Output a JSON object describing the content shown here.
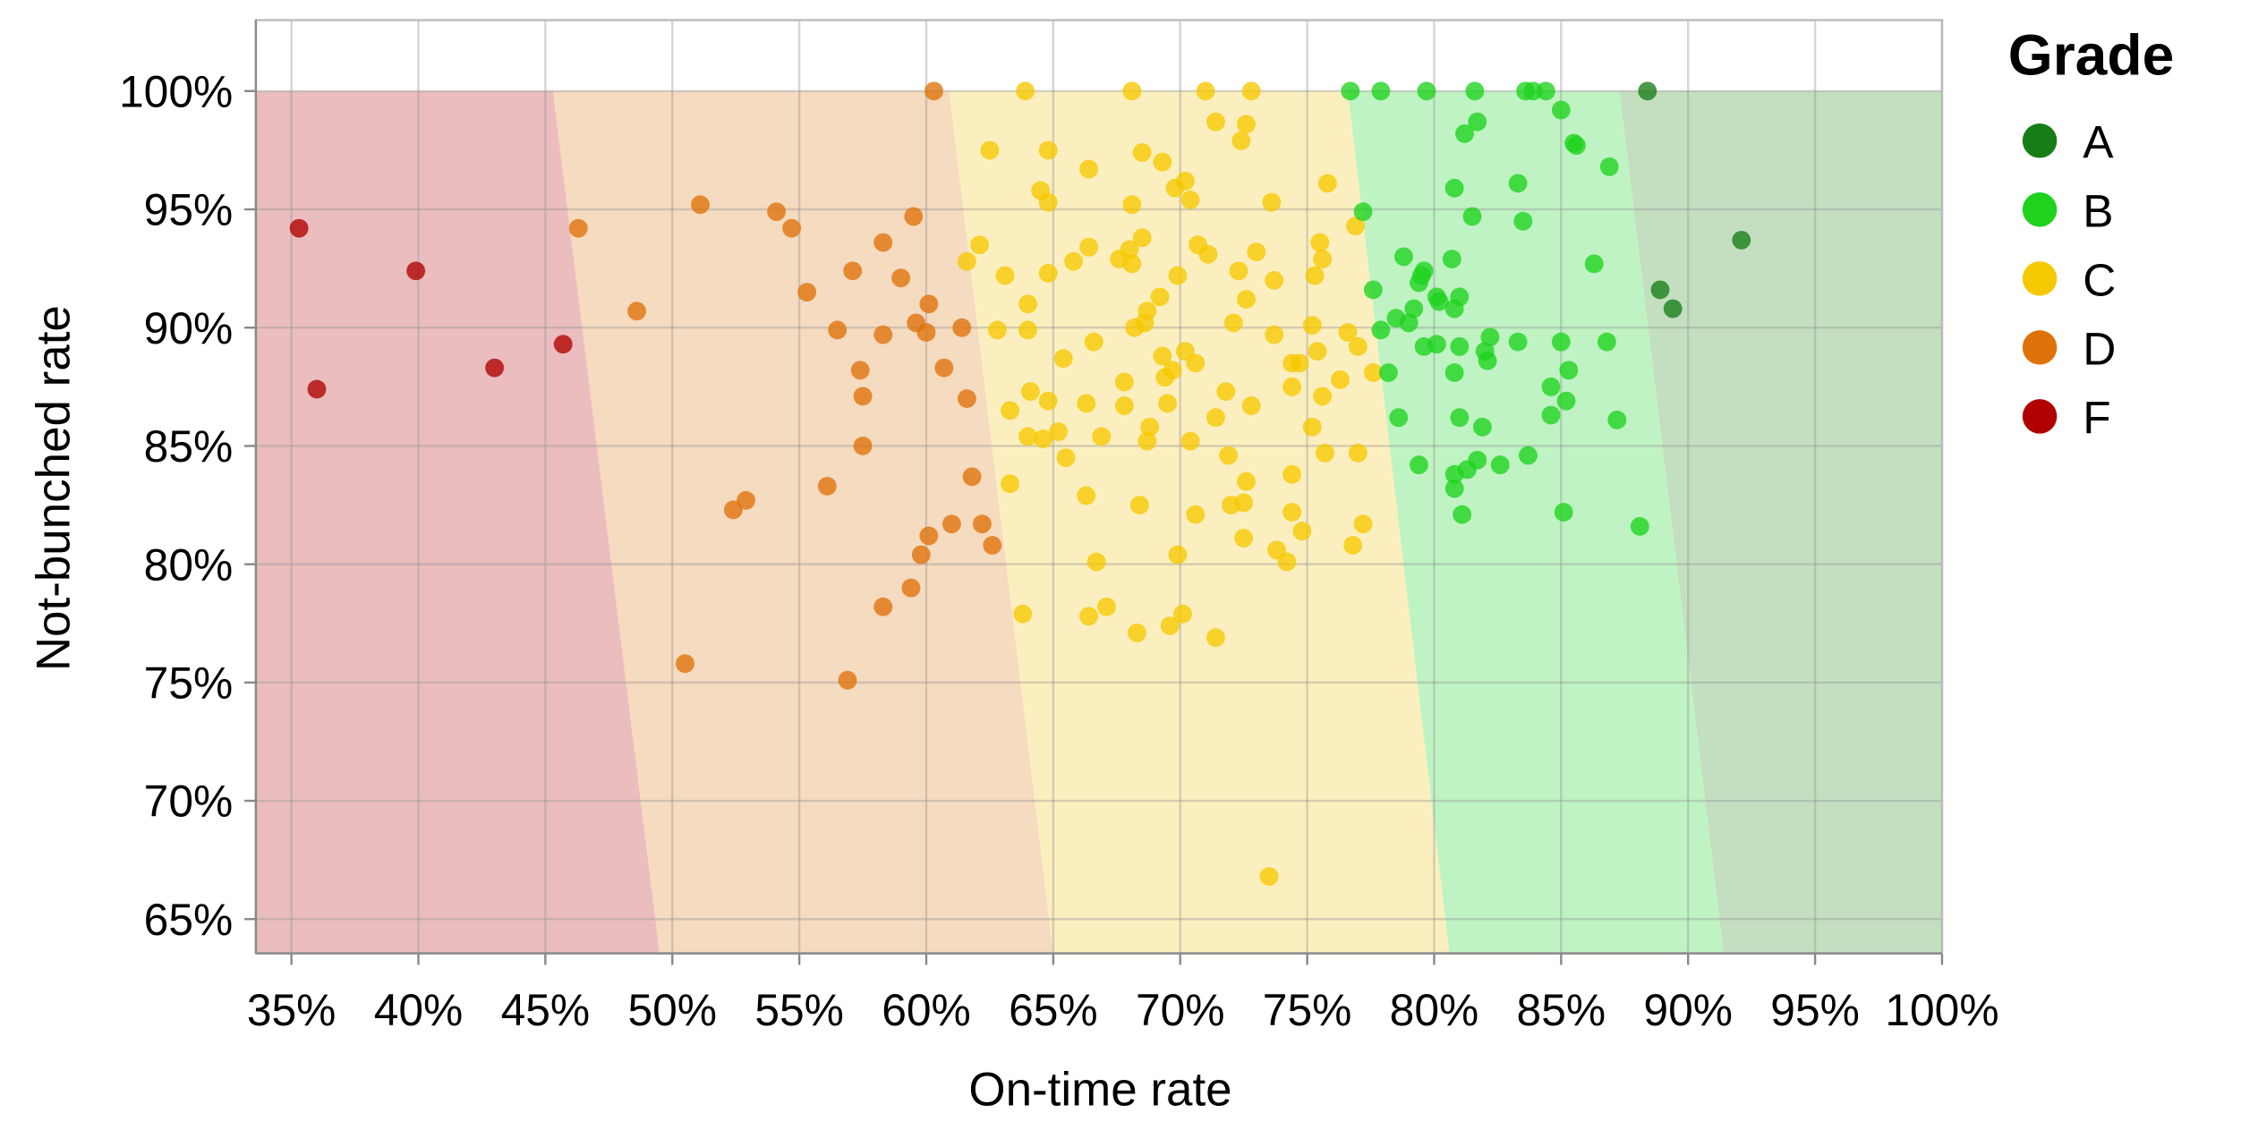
{
  "chart_data": {
    "type": "scatter",
    "xlabel": "On-time rate",
    "ylabel": "Not-bunched rate",
    "xlim": [
      33.6,
      100
    ],
    "ylim": [
      63.55,
      103
    ],
    "x_ticks": [
      "35%",
      "40%",
      "45%",
      "50%",
      "55%",
      "60%",
      "65%",
      "70%",
      "75%",
      "80%",
      "85%",
      "90%",
      "95%",
      "100%"
    ],
    "x_tick_values": [
      35,
      40,
      45,
      50,
      55,
      60,
      65,
      70,
      75,
      80,
      85,
      90,
      95,
      100
    ],
    "y_ticks": [
      "65%",
      "70%",
      "75%",
      "80%",
      "85%",
      "90%",
      "95%",
      "100%"
    ],
    "y_tick_values": [
      65,
      70,
      75,
      80,
      85,
      90,
      95,
      100
    ],
    "grid": true,
    "legend": {
      "title": "Grade",
      "placement": "right",
      "entries": [
        "A",
        "B",
        "C",
        "D",
        "F"
      ]
    },
    "colors": {
      "A": "#177d17",
      "B": "#1ed21e",
      "C": "#f6c800",
      "D": "#df720a",
      "F": "#b00000"
    },
    "regions": [
      {
        "grade": "F",
        "color": "#ebbdbf",
        "top_boundary": 45.3,
        "bottom_boundary": 49.5
      },
      {
        "grade": "D",
        "color": "#f5dbbf",
        "top_boundary": 60.9,
        "bottom_boundary": 65.0
      },
      {
        "grade": "C",
        "color": "#fcefbf",
        "top_boundary": 76.6,
        "bottom_boundary": 80.6
      },
      {
        "grade": "B",
        "color": "#bff3c3",
        "top_boundary": 87.3,
        "bottom_boundary": 91.4
      },
      {
        "grade": "A",
        "color": "#c3dfc0",
        "top_boundary": 100,
        "bottom_boundary": 100
      }
    ],
    "series": [
      {
        "name": "F",
        "points": [
          [
            35.3,
            94.2
          ],
          [
            36.0,
            87.4
          ],
          [
            39.9,
            92.4
          ],
          [
            43.0,
            88.3
          ],
          [
            45.7,
            89.3
          ]
        ]
      },
      {
        "name": "A",
        "points": [
          [
            88.4,
            100
          ],
          [
            92.1,
            93.7
          ],
          [
            88.9,
            91.6
          ],
          [
            89.4,
            90.8
          ]
        ]
      },
      {
        "name": "D",
        "points": [
          [
            46.3,
            94.2
          ],
          [
            48.6,
            90.7
          ],
          [
            51.1,
            95.2
          ],
          [
            50.5,
            75.8
          ],
          [
            52.4,
            82.3
          ],
          [
            52.9,
            82.7
          ],
          [
            54.1,
            94.9
          ],
          [
            54.7,
            94.2
          ],
          [
            55.3,
            91.5
          ],
          [
            56.1,
            83.3
          ],
          [
            56.5,
            89.9
          ],
          [
            57.1,
            92.4
          ],
          [
            56.9,
            75.1
          ],
          [
            57.4,
            88.2
          ],
          [
            57.5,
            87.1
          ],
          [
            57.5,
            85.0
          ],
          [
            58.3,
            93.6
          ],
          [
            58.3,
            89.7
          ],
          [
            58.3,
            78.2
          ],
          [
            59.0,
            92.1
          ],
          [
            59.4,
            79.0
          ],
          [
            59.5,
            94.7
          ],
          [
            59.6,
            90.2
          ],
          [
            59.8,
            80.4
          ],
          [
            60.0,
            89.8
          ],
          [
            60.1,
            91.0
          ],
          [
            60.1,
            81.2
          ],
          [
            60.3,
            100
          ],
          [
            60.7,
            88.3
          ],
          [
            61.0,
            81.7
          ],
          [
            61.4,
            90.0
          ],
          [
            61.6,
            87.0
          ],
          [
            61.8,
            83.7
          ],
          [
            62.2,
            81.7
          ],
          [
            62.6,
            80.8
          ]
        ]
      },
      {
        "name": "C",
        "points": [
          [
            63.9,
            100
          ],
          [
            68.1,
            100
          ],
          [
            71.0,
            100
          ],
          [
            72.8,
            100
          ],
          [
            62.5,
            97.5
          ],
          [
            64.8,
            97.5
          ],
          [
            66.4,
            96.7
          ],
          [
            68.5,
            97.4
          ],
          [
            69.3,
            97.0
          ],
          [
            71.4,
            98.7
          ],
          [
            72.4,
            97.9
          ],
          [
            72.6,
            98.6
          ],
          [
            64.5,
            95.8
          ],
          [
            64.8,
            95.3
          ],
          [
            68.1,
            95.2
          ],
          [
            69.8,
            95.9
          ],
          [
            70.2,
            96.2
          ],
          [
            70.4,
            95.4
          ],
          [
            73.6,
            95.3
          ],
          [
            75.8,
            96.1
          ],
          [
            76.9,
            94.3
          ],
          [
            61.6,
            92.8
          ],
          [
            62.1,
            93.5
          ],
          [
            63.1,
            92.2
          ],
          [
            64.0,
            91.0
          ],
          [
            64.8,
            92.3
          ],
          [
            65.8,
            92.8
          ],
          [
            66.4,
            93.4
          ],
          [
            67.6,
            92.9
          ],
          [
            68.0,
            93.3
          ],
          [
            68.1,
            92.7
          ],
          [
            68.5,
            93.8
          ],
          [
            69.2,
            91.3
          ],
          [
            69.9,
            92.2
          ],
          [
            70.7,
            93.5
          ],
          [
            71.1,
            93.1
          ],
          [
            72.3,
            92.4
          ],
          [
            73.0,
            93.2
          ],
          [
            73.7,
            92.0
          ],
          [
            75.3,
            92.2
          ],
          [
            75.5,
            93.6
          ],
          [
            75.6,
            92.9
          ],
          [
            62.8,
            89.9
          ],
          [
            64.0,
            89.9
          ],
          [
            65.4,
            88.7
          ],
          [
            66.6,
            89.4
          ],
          [
            68.2,
            90.0
          ],
          [
            68.7,
            90.7
          ],
          [
            68.6,
            90.2
          ],
          [
            69.3,
            88.8
          ],
          [
            69.4,
            87.9
          ],
          [
            69.7,
            88.2
          ],
          [
            70.2,
            89.0
          ],
          [
            70.6,
            88.5
          ],
          [
            72.1,
            90.2
          ],
          [
            72.6,
            91.2
          ],
          [
            73.7,
            89.7
          ],
          [
            74.4,
            88.5
          ],
          [
            74.7,
            88.5
          ],
          [
            75.2,
            90.1
          ],
          [
            75.4,
            89.0
          ],
          [
            76.6,
            89.8
          ],
          [
            77.0,
            89.2
          ],
          [
            76.3,
            87.8
          ],
          [
            77.6,
            88.1
          ],
          [
            64.1,
            87.3
          ],
          [
            63.3,
            86.5
          ],
          [
            64.8,
            86.9
          ],
          [
            66.3,
            86.8
          ],
          [
            67.8,
            87.7
          ],
          [
            67.8,
            86.7
          ],
          [
            68.8,
            85.8
          ],
          [
            69.5,
            86.8
          ],
          [
            71.4,
            86.2
          ],
          [
            71.8,
            87.3
          ],
          [
            72.8,
            86.7
          ],
          [
            74.4,
            87.5
          ],
          [
            75.2,
            85.8
          ],
          [
            75.6,
            87.1
          ],
          [
            64.0,
            85.4
          ],
          [
            64.6,
            85.3
          ],
          [
            65.2,
            85.6
          ],
          [
            65.5,
            84.5
          ],
          [
            66.9,
            85.4
          ],
          [
            68.7,
            85.2
          ],
          [
            70.4,
            85.2
          ],
          [
            71.9,
            84.6
          ],
          [
            72.6,
            83.5
          ],
          [
            74.4,
            83.8
          ],
          [
            75.7,
            84.7
          ],
          [
            77.0,
            84.7
          ],
          [
            63.3,
            83.4
          ],
          [
            66.3,
            82.9
          ],
          [
            68.4,
            82.5
          ],
          [
            70.6,
            82.1
          ],
          [
            72.0,
            82.5
          ],
          [
            72.5,
            82.6
          ],
          [
            74.4,
            82.2
          ],
          [
            74.8,
            81.4
          ],
          [
            77.2,
            81.7
          ],
          [
            72.5,
            81.1
          ],
          [
            73.8,
            80.6
          ],
          [
            74.2,
            80.1
          ],
          [
            76.8,
            80.8
          ],
          [
            66.7,
            80.1
          ],
          [
            69.9,
            80.4
          ],
          [
            63.8,
            77.9
          ],
          [
            66.4,
            77.8
          ],
          [
            67.1,
            78.2
          ],
          [
            68.3,
            77.1
          ],
          [
            69.6,
            77.4
          ],
          [
            70.1,
            77.9
          ],
          [
            71.4,
            76.9
          ],
          [
            73.5,
            66.8
          ]
        ]
      },
      {
        "name": "B",
        "points": [
          [
            76.7,
            100
          ],
          [
            77.9,
            100
          ],
          [
            79.7,
            100
          ],
          [
            81.6,
            100
          ],
          [
            83.6,
            100
          ],
          [
            83.9,
            100
          ],
          [
            84.4,
            100
          ],
          [
            85.0,
            99.2
          ],
          [
            85.5,
            97.8
          ],
          [
            85.6,
            97.7
          ],
          [
            86.9,
            96.8
          ],
          [
            81.2,
            98.2
          ],
          [
            81.7,
            98.7
          ],
          [
            77.2,
            94.9
          ],
          [
            80.8,
            95.9
          ],
          [
            81.5,
            94.7
          ],
          [
            83.3,
            96.1
          ],
          [
            83.5,
            94.5
          ],
          [
            86.3,
            92.7
          ],
          [
            78.8,
            93.0
          ],
          [
            77.6,
            91.6
          ],
          [
            79.5,
            92.2
          ],
          [
            79.6,
            92.4
          ],
          [
            79.4,
            91.9
          ],
          [
            80.7,
            92.9
          ],
          [
            81.0,
            91.3
          ],
          [
            80.1,
            91.3
          ],
          [
            80.2,
            91.1
          ],
          [
            80.8,
            90.8
          ],
          [
            79.2,
            90.8
          ],
          [
            78.5,
            90.4
          ],
          [
            79.0,
            90.2
          ],
          [
            77.9,
            89.9
          ],
          [
            79.6,
            89.2
          ],
          [
            80.1,
            89.3
          ],
          [
            81.0,
            89.2
          ],
          [
            82.2,
            89.6
          ],
          [
            83.3,
            89.4
          ],
          [
            85.0,
            89.4
          ],
          [
            86.8,
            89.4
          ],
          [
            82.0,
            89.0
          ],
          [
            82.1,
            88.6
          ],
          [
            78.2,
            88.1
          ],
          [
            80.8,
            88.1
          ],
          [
            85.3,
            88.2
          ],
          [
            84.6,
            87.5
          ],
          [
            85.2,
            86.9
          ],
          [
            78.6,
            86.2
          ],
          [
            81.0,
            86.2
          ],
          [
            84.6,
            86.3
          ],
          [
            87.2,
            86.1
          ],
          [
            81.9,
            85.8
          ],
          [
            79.4,
            84.2
          ],
          [
            80.8,
            83.8
          ],
          [
            80.8,
            83.2
          ],
          [
            81.3,
            84.0
          ],
          [
            81.7,
            84.4
          ],
          [
            82.6,
            84.2
          ],
          [
            83.7,
            84.6
          ],
          [
            81.1,
            82.1
          ],
          [
            85.1,
            82.2
          ],
          [
            88.1,
            81.6
          ]
        ]
      }
    ]
  }
}
